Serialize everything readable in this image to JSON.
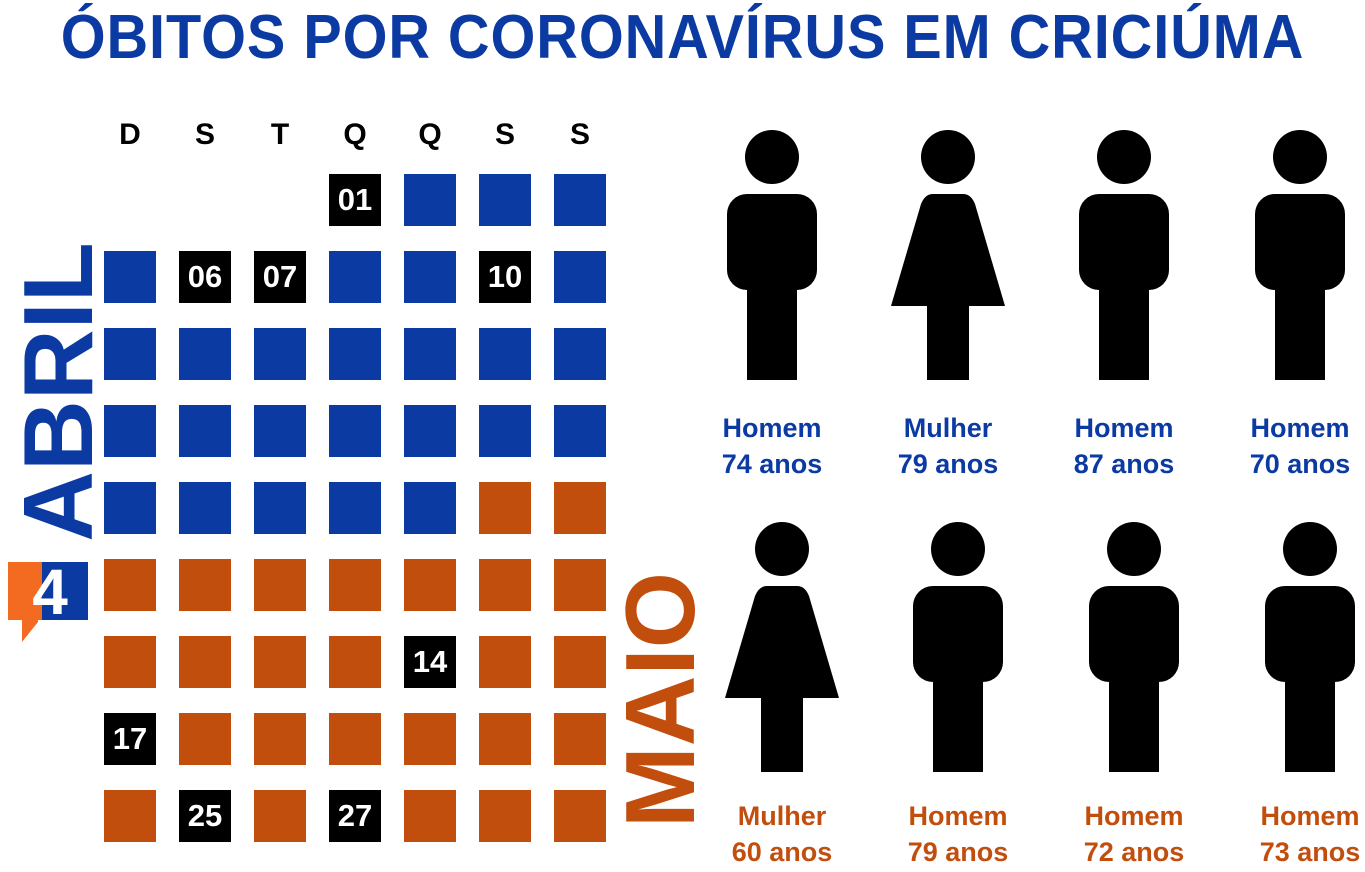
{
  "title": "ÓBITOS POR CORONAVÍRUS EM CRICIÚMA",
  "colors": {
    "april": "#0b3aa3",
    "may": "#c24e0e",
    "death": "#000000",
    "logo_orange": "#f26b21",
    "logo_blue": "#0b3aa3"
  },
  "weekdays": [
    "D",
    "S",
    "T",
    "Q",
    "Q",
    "S",
    "S"
  ],
  "months": {
    "april": "ABRIL",
    "may": "MAIO"
  },
  "logo_text": "4",
  "calendar_rows": [
    [
      null,
      null,
      null,
      {
        "m": "april",
        "label": "01"
      },
      {
        "m": "april"
      },
      {
        "m": "april"
      },
      {
        "m": "april"
      }
    ],
    [
      {
        "m": "april"
      },
      {
        "m": "april",
        "label": "06"
      },
      {
        "m": "april",
        "label": "07"
      },
      {
        "m": "april"
      },
      {
        "m": "april"
      },
      {
        "m": "april",
        "label": "10"
      },
      {
        "m": "april"
      }
    ],
    [
      {
        "m": "april"
      },
      {
        "m": "april"
      },
      {
        "m": "april"
      },
      {
        "m": "april"
      },
      {
        "m": "april"
      },
      {
        "m": "april"
      },
      {
        "m": "april"
      }
    ],
    [
      {
        "m": "april"
      },
      {
        "m": "april"
      },
      {
        "m": "april"
      },
      {
        "m": "april"
      },
      {
        "m": "april"
      },
      {
        "m": "april"
      },
      {
        "m": "april"
      }
    ],
    [
      {
        "m": "april"
      },
      {
        "m": "april"
      },
      {
        "m": "april"
      },
      {
        "m": "april"
      },
      {
        "m": "april"
      },
      {
        "m": "may"
      },
      {
        "m": "may"
      }
    ],
    [
      {
        "m": "may"
      },
      {
        "m": "may"
      },
      {
        "m": "may"
      },
      {
        "m": "may"
      },
      {
        "m": "may"
      },
      {
        "m": "may"
      },
      {
        "m": "may"
      }
    ],
    [
      {
        "m": "may"
      },
      {
        "m": "may"
      },
      {
        "m": "may"
      },
      {
        "m": "may"
      },
      {
        "m": "may",
        "label": "14"
      },
      {
        "m": "may"
      },
      {
        "m": "may"
      }
    ],
    [
      {
        "m": "may",
        "label": "17"
      },
      {
        "m": "may"
      },
      {
        "m": "may"
      },
      {
        "m": "may"
      },
      {
        "m": "may"
      },
      {
        "m": "may"
      },
      {
        "m": "may"
      }
    ],
    [
      {
        "m": "may"
      },
      {
        "m": "may",
        "label": "25"
      },
      {
        "m": "may"
      },
      {
        "m": "may",
        "label": "27"
      },
      {
        "m": "may"
      },
      {
        "m": "may"
      },
      {
        "m": "may"
      }
    ]
  ],
  "victims": [
    {
      "gender": "man",
      "sex": "Homem",
      "age": "74 anos",
      "month": "april"
    },
    {
      "gender": "woman",
      "sex": "Mulher",
      "age": "79 anos",
      "month": "april"
    },
    {
      "gender": "man",
      "sex": "Homem",
      "age": "87 anos",
      "month": "april"
    },
    {
      "gender": "man",
      "sex": "Homem",
      "age": "70 anos",
      "month": "april"
    },
    {
      "gender": "woman",
      "sex": "Mulher",
      "age": "60 anos",
      "month": "may"
    },
    {
      "gender": "man",
      "sex": "Homem",
      "age": "79 anos",
      "month": "may"
    },
    {
      "gender": "man",
      "sex": "Homem",
      "age": "72 anos",
      "month": "may"
    },
    {
      "gender": "man",
      "sex": "Homem",
      "age": "73 anos",
      "month": "may"
    }
  ]
}
